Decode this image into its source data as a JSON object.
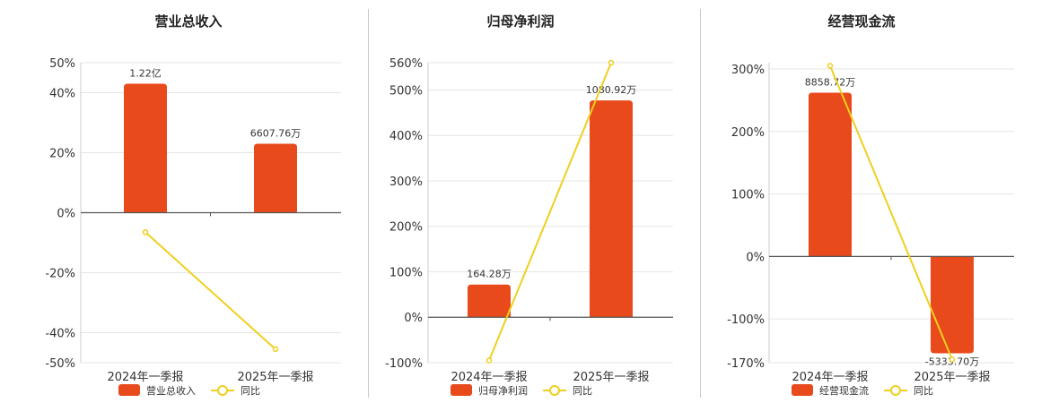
{
  "colors": {
    "bar": "#e84a1c",
    "line": "#f0cf1e",
    "grid": "#e6e6e6",
    "axis": "#555555"
  },
  "chart_data": [
    {
      "type": "bar",
      "title": "营业总收入",
      "categories": [
        "2024年一季报",
        "2025年一季报"
      ],
      "series": [
        {
          "name": "营业总收入",
          "kind": "bar",
          "values": [
            43,
            23
          ],
          "labels": [
            "1.22亿",
            "6607.76万"
          ]
        },
        {
          "name": "同比",
          "kind": "line",
          "values": [
            -6.5,
            -45.5
          ]
        }
      ],
      "yticks": [
        50,
        40,
        20,
        0,
        -20,
        -40,
        -50
      ],
      "ytick_labels": [
        "50%",
        "40%",
        "20%",
        "0%",
        "-20%",
        "-40%",
        "-50%"
      ],
      "ylim": [
        -50,
        50
      ],
      "grid": true,
      "legend": "bottom"
    },
    {
      "type": "bar",
      "title": "归母净利润",
      "categories": [
        "2024年一季报",
        "2025年一季报"
      ],
      "series": [
        {
          "name": "归母净利润",
          "kind": "bar",
          "values": [
            72,
            477
          ],
          "labels": [
            "164.28万",
            "1080.92万"
          ]
        },
        {
          "name": "同比",
          "kind": "line",
          "values": [
            -95,
            560
          ]
        }
      ],
      "yticks": [
        560,
        500,
        400,
        300,
        200,
        100,
        0,
        -100
      ],
      "ytick_labels": [
        "560%",
        "500%",
        "400%",
        "300%",
        "200%",
        "100%",
        "0%",
        "-100%"
      ],
      "ylim": [
        -100,
        560
      ],
      "grid": true,
      "legend": "bottom"
    },
    {
      "type": "bar",
      "title": "经营现金流",
      "categories": [
        "2024年一季报",
        "2025年一季报"
      ],
      "series": [
        {
          "name": "经营现金流",
          "kind": "bar",
          "values": [
            262,
            -155
          ],
          "labels": [
            "8858.72万",
            "-5333.70万"
          ]
        },
        {
          "name": "同比",
          "kind": "line",
          "values": [
            305,
            -165
          ]
        }
      ],
      "yticks": [
        300,
        200,
        100,
        0,
        -100,
        -170
      ],
      "ytick_labels": [
        "300%",
        "200%",
        "100%",
        "0%",
        "-100%",
        "-170%"
      ],
      "ylim": [
        -170,
        310
      ],
      "grid": true,
      "legend": "bottom"
    }
  ]
}
